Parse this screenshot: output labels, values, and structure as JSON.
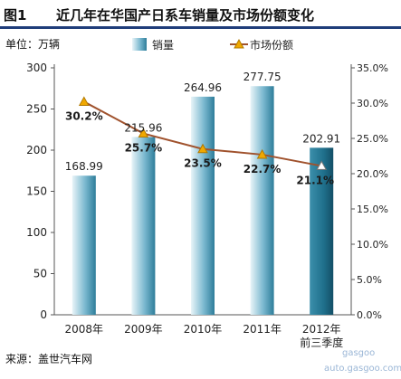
{
  "header": {
    "figure_label": "图1",
    "title": "近几年在华国产日系车销量及市场份额变化",
    "unit": "单位：万辆"
  },
  "footer": {
    "source": "来源：盖世汽车网",
    "watermark_line1": "gasgoo",
    "watermark_line2": "auto.gasgoo.com"
  },
  "chart_data": {
    "type": "bar",
    "categories": [
      [
        "2008年"
      ],
      [
        "2009年"
      ],
      [
        "2010年"
      ],
      [
        "2011年"
      ],
      [
        "2012年",
        "前三季度"
      ]
    ],
    "series": [
      {
        "name": "销量",
        "type": "bar",
        "axis": "left",
        "values": [
          168.99,
          215.96,
          264.96,
          277.75,
          202.91
        ],
        "labels": [
          "168.99",
          "215.96",
          "264.96",
          "277.75",
          "202.91"
        ]
      },
      {
        "name": "市场份额",
        "type": "line",
        "axis": "right",
        "values": [
          30.2,
          25.7,
          23.5,
          22.7,
          21.1
        ],
        "labels": [
          "30.2%",
          "25.7%",
          "23.5%",
          "22.7%",
          "21.1%"
        ]
      }
    ],
    "left_axis": {
      "min": 0,
      "max": 300,
      "ticks": [
        "0",
        "50",
        "100",
        "150",
        "200",
        "250",
        "300"
      ]
    },
    "right_axis": {
      "min": 0,
      "max": 35,
      "ticks": [
        "0.0%",
        "5.0%",
        "10.0%",
        "15.0%",
        "20.0%",
        "25.0%",
        "30.0%",
        "35.0%"
      ]
    },
    "legend_position": "top",
    "colors": {
      "bar": "#4a9dbd",
      "bar_highlight": "#1f6f8b",
      "line": "#a0522d",
      "marker": "#f0a800"
    }
  }
}
